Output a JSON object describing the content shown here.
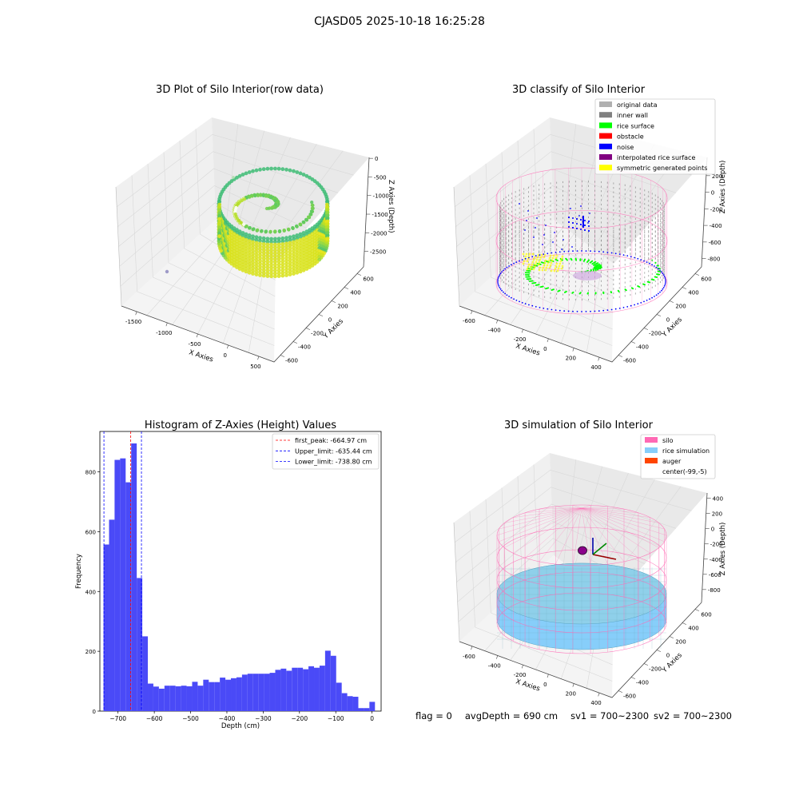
{
  "figure_title": "CJASD05 2025-10-18 16:25:28",
  "footer": {
    "flag": "flag = 0",
    "avg_depth": "avgDepth = 690 cm",
    "sv1": "sv1 = 700~2300",
    "sv2": "sv2 = 700~2300"
  },
  "colors": {
    "histogram_bar": "#4a4af7",
    "peak_line": "#ff0000",
    "limit_line": "#0000ff",
    "pane": "#f2f2f2",
    "silo_wire": "#ff69b4",
    "rice_simulation": "#87cefa",
    "auger": "#ff4500",
    "original_data": "#b0b0b0",
    "inner_wall": "#808080",
    "rice_surface": "#00ff00",
    "obstacle": "#ff0000",
    "noise": "#0000ff",
    "interpolated_rice_surface": "#800080",
    "symmetric_generated_points": "#ffff00"
  },
  "chart_data": [
    {
      "type": "scatter",
      "dimension": "3d",
      "title": "3D Plot of Silo Interior(row data)",
      "xlabel": "X Axies",
      "ylabel": "Y Axies",
      "zlabel": "Z Axies (Depth)",
      "x_ticks": [
        "-1500",
        "-1000",
        "-500",
        "0",
        "500"
      ],
      "y_ticks": [
        "-600",
        "-400",
        "-200",
        "0",
        "200",
        "400",
        "600"
      ],
      "z_ticks": [
        "0",
        "-500",
        "-1000",
        "-1500",
        "-2000",
        "-2500"
      ],
      "xlim": [
        -1900,
        650
      ],
      "ylim": [
        -700,
        700
      ],
      "zlim": [
        -2800,
        100
      ],
      "colormap": "viridis-yellow",
      "description_points": "ring of depth points"
    },
    {
      "type": "scatter",
      "dimension": "3d",
      "title": "3D classify of Silo Interior",
      "xlabel": "X Axies",
      "ylabel": "Y Axies",
      "zlabel": "Z Axies (Depth)",
      "x_ticks": [
        "-600",
        "-400",
        "-200",
        "0",
        "200",
        "400"
      ],
      "y_ticks": [
        "-600",
        "-400",
        "-200",
        "0",
        "200",
        "400",
        "600"
      ],
      "z_ticks": [
        "200",
        "0",
        "-200",
        "-400",
        "-600",
        "-800"
      ],
      "legend_position": "top-right",
      "legend": [
        "original data",
        "inner wall",
        "rice surface",
        "obstacle",
        "noise",
        "interpolated rice surface",
        "symmetric generated points"
      ]
    },
    {
      "type": "bar",
      "title": "Histogram of Z-Axies (Height) Values",
      "xlabel": "Depth (cm)",
      "ylabel": "Frequency",
      "xlim": [
        -750,
        25
      ],
      "ylim": [
        0,
        935
      ],
      "x_ticks": [
        -700,
        -600,
        -500,
        -400,
        -300,
        -200,
        -100,
        0
      ],
      "y_ticks": [
        0,
        200,
        400,
        600,
        800
      ],
      "bin_width": 10,
      "bin_start": -740,
      "values": [
        557,
        640,
        840,
        845,
        765,
        895,
        445,
        250,
        92,
        82,
        75,
        85,
        85,
        83,
        85,
        83,
        98,
        85,
        105,
        97,
        97,
        112,
        105,
        110,
        113,
        122,
        125,
        125,
        125,
        125,
        128,
        138,
        142,
        135,
        145,
        145,
        140,
        150,
        145,
        152,
        202,
        185,
        95,
        60,
        50,
        48,
        10,
        10,
        31
      ],
      "vlines": [
        {
          "label": "first_peak: -664.97 cm",
          "x": -664.97,
          "style": "peak"
        },
        {
          "label": "Upper_limit: -635.44 cm",
          "x": -635.44,
          "style": "limit"
        },
        {
          "label": "Lower_limit: -738.80 cm",
          "x": -738.8,
          "style": "limit"
        }
      ],
      "legend_position": "top-right"
    },
    {
      "type": "surface",
      "dimension": "3d",
      "title": "3D simulation of Silo Interior",
      "xlabel": "X Axies",
      "ylabel": "Y Axies",
      "zlabel": "Z Axies (Depth)",
      "x_ticks": [
        "-600",
        "-400",
        "-200",
        "0",
        "200",
        "400"
      ],
      "y_ticks": [
        "-600",
        "-400",
        "-200",
        "0",
        "200",
        "400",
        "600"
      ],
      "z_ticks": [
        "400",
        "200",
        "0",
        "-200",
        "-400",
        "-600",
        "-800"
      ],
      "legend_position": "top-right",
      "legend": [
        "silo",
        "rice simulation",
        "auger",
        "center(-99,-5)"
      ]
    }
  ]
}
